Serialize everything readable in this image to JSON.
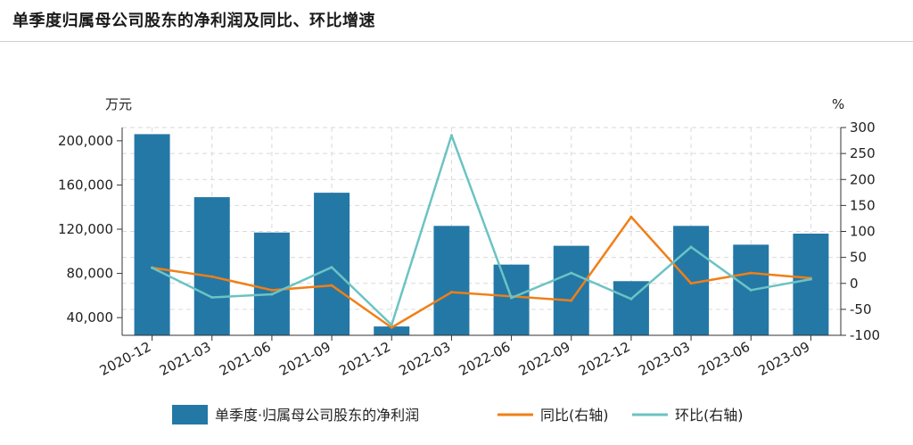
{
  "title": "单季度归属母公司股东的净利润及同比、环比增速",
  "chart_data": {
    "type": "bar",
    "categories": [
      "2020-12",
      "2021-03",
      "2021-06",
      "2021-09",
      "2021-12",
      "2022-03",
      "2022-06",
      "2022-09",
      "2022-12",
      "2023-03",
      "2023-06",
      "2023-09"
    ],
    "left_axis": {
      "unit": "万元",
      "ticks": [
        40000,
        80000,
        120000,
        160000,
        200000
      ],
      "tick_labels": [
        "40,000",
        "80,000",
        "120,000",
        "160,000",
        "200,000"
      ],
      "range": [
        24000,
        212000
      ]
    },
    "right_axis": {
      "unit": "%",
      "ticks": [
        -100,
        -50,
        0,
        50,
        100,
        150,
        200,
        250,
        300
      ],
      "range": [
        -100,
        300
      ]
    },
    "series": [
      {
        "name": "单季度·归属母公司股东的净利润",
        "type": "bar",
        "axis": "left",
        "color": "#2478a6",
        "values": [
          206000,
          149000,
          117000,
          153000,
          32000,
          123000,
          88000,
          105000,
          73000,
          123000,
          106000,
          116000
        ]
      },
      {
        "name": "同比(右轴)",
        "type": "line",
        "axis": "right",
        "color": "#f07f17",
        "values": [
          30,
          13,
          -13,
          -4,
          -85,
          -17,
          -25,
          -33,
          128,
          0,
          20,
          10
        ]
      },
      {
        "name": "环比(右轴)",
        "type": "line",
        "axis": "right",
        "color": "#6cc3c3",
        "values": [
          30,
          -27,
          -21,
          31,
          -80,
          285,
          -28,
          20,
          -30,
          70,
          -13,
          8
        ]
      }
    ],
    "grid": true,
    "legend_position": "bottom"
  }
}
